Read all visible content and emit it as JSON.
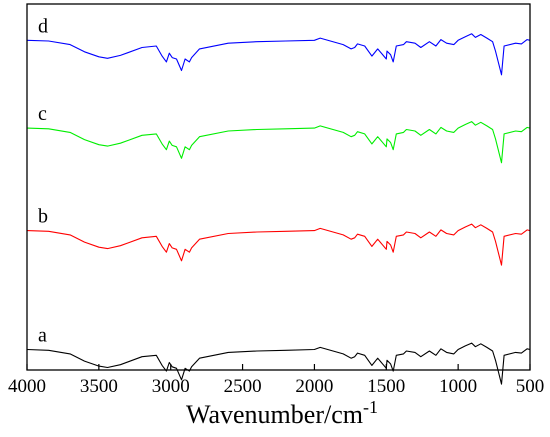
{
  "chart_data": {
    "type": "line",
    "title": "",
    "xlabel": "Wavenumber/cm",
    "xlabel_superscript": "-1",
    "ylabel": "",
    "xlim": [
      4000,
      500
    ],
    "x_reversed": true,
    "y_ticks_shown": false,
    "grid": false,
    "legend": "none",
    "x_ticks": [
      4000,
      3500,
      3000,
      2500,
      2000,
      1500,
      1000,
      500
    ],
    "series": [
      {
        "name": "a",
        "color": "#000000",
        "offset": 0.05,
        "x": [
          4000,
          3850,
          3700,
          3600,
          3500,
          3440,
          3350,
          3200,
          3100,
          3060,
          3030,
          3010,
          2990,
          2960,
          2925,
          2900,
          2870,
          2855,
          2800,
          2600,
          2400,
          2200,
          2000,
          1960,
          1800,
          1745,
          1720,
          1700,
          1650,
          1600,
          1560,
          1500,
          1495,
          1470,
          1452,
          1430,
          1380,
          1360,
          1300,
          1260,
          1200,
          1155,
          1120,
          1080,
          1030,
          1000,
          950,
          906,
          880,
          842,
          800,
          760,
          740,
          698,
          680,
          600,
          560,
          520,
          500
        ],
        "y": [
          0.68,
          0.67,
          0.62,
          0.52,
          0.45,
          0.43,
          0.47,
          0.58,
          0.6,
          0.46,
          0.38,
          0.5,
          0.44,
          0.42,
          0.26,
          0.42,
          0.38,
          0.44,
          0.56,
          0.64,
          0.66,
          0.67,
          0.68,
          0.71,
          0.62,
          0.56,
          0.58,
          0.63,
          0.6,
          0.46,
          0.56,
          0.42,
          0.53,
          0.48,
          0.38,
          0.6,
          0.62,
          0.66,
          0.64,
          0.58,
          0.66,
          0.6,
          0.69,
          0.64,
          0.62,
          0.68,
          0.73,
          0.77,
          0.72,
          0.76,
          0.71,
          0.66,
          0.53,
          0.2,
          0.6,
          0.64,
          0.63,
          0.69,
          0.68
        ]
      },
      {
        "name": "b",
        "color": "#ff0000",
        "offset": 0.375,
        "x": [
          4000,
          3850,
          3700,
          3600,
          3500,
          3440,
          3350,
          3200,
          3100,
          3060,
          3030,
          3010,
          2990,
          2960,
          2925,
          2900,
          2870,
          2855,
          2800,
          2600,
          2400,
          2200,
          2000,
          1960,
          1800,
          1745,
          1720,
          1700,
          1650,
          1600,
          1560,
          1500,
          1495,
          1470,
          1452,
          1430,
          1380,
          1360,
          1300,
          1260,
          1200,
          1155,
          1120,
          1080,
          1030,
          1000,
          950,
          906,
          880,
          842,
          800,
          760,
          740,
          698,
          680,
          600,
          560,
          520,
          500
        ],
        "y": [
          0.68,
          0.67,
          0.62,
          0.52,
          0.45,
          0.43,
          0.47,
          0.58,
          0.6,
          0.46,
          0.38,
          0.5,
          0.44,
          0.42,
          0.26,
          0.42,
          0.38,
          0.44,
          0.56,
          0.64,
          0.66,
          0.67,
          0.68,
          0.71,
          0.62,
          0.56,
          0.58,
          0.63,
          0.6,
          0.46,
          0.56,
          0.42,
          0.53,
          0.48,
          0.38,
          0.6,
          0.62,
          0.66,
          0.64,
          0.58,
          0.66,
          0.6,
          0.69,
          0.64,
          0.62,
          0.68,
          0.73,
          0.77,
          0.72,
          0.76,
          0.71,
          0.66,
          0.53,
          0.2,
          0.6,
          0.64,
          0.63,
          0.69,
          0.68
        ]
      },
      {
        "name": "c",
        "color": "#00ee00",
        "offset": 0.655,
        "x": [
          4000,
          3850,
          3700,
          3600,
          3500,
          3440,
          3350,
          3200,
          3100,
          3060,
          3030,
          3010,
          2990,
          2960,
          2925,
          2900,
          2870,
          2855,
          2800,
          2600,
          2400,
          2200,
          2000,
          1960,
          1800,
          1745,
          1720,
          1700,
          1650,
          1600,
          1560,
          1500,
          1495,
          1470,
          1452,
          1430,
          1380,
          1360,
          1300,
          1260,
          1200,
          1155,
          1120,
          1080,
          1030,
          1000,
          950,
          906,
          880,
          842,
          800,
          760,
          740,
          698,
          680,
          600,
          560,
          520,
          500
        ],
        "y": [
          0.68,
          0.67,
          0.62,
          0.52,
          0.45,
          0.43,
          0.47,
          0.58,
          0.6,
          0.46,
          0.38,
          0.5,
          0.44,
          0.42,
          0.26,
          0.42,
          0.38,
          0.44,
          0.56,
          0.64,
          0.66,
          0.67,
          0.68,
          0.71,
          0.62,
          0.56,
          0.58,
          0.63,
          0.6,
          0.46,
          0.56,
          0.42,
          0.53,
          0.48,
          0.38,
          0.6,
          0.62,
          0.66,
          0.64,
          0.58,
          0.66,
          0.6,
          0.69,
          0.64,
          0.62,
          0.68,
          0.73,
          0.77,
          0.72,
          0.76,
          0.71,
          0.66,
          0.53,
          0.2,
          0.6,
          0.64,
          0.63,
          0.69,
          0.68
        ]
      },
      {
        "name": "d",
        "color": "#0000ff",
        "offset": 0.895,
        "x": [
          4000,
          3850,
          3700,
          3600,
          3500,
          3440,
          3350,
          3200,
          3100,
          3060,
          3030,
          3010,
          2990,
          2960,
          2925,
          2900,
          2870,
          2855,
          2800,
          2600,
          2400,
          2200,
          2000,
          1960,
          1800,
          1745,
          1720,
          1700,
          1650,
          1600,
          1560,
          1500,
          1495,
          1470,
          1452,
          1430,
          1380,
          1360,
          1300,
          1260,
          1200,
          1155,
          1120,
          1080,
          1030,
          1000,
          950,
          906,
          880,
          842,
          800,
          760,
          740,
          698,
          680,
          600,
          560,
          520,
          500
        ],
        "y": [
          0.68,
          0.67,
          0.62,
          0.52,
          0.45,
          0.43,
          0.47,
          0.58,
          0.6,
          0.46,
          0.38,
          0.5,
          0.44,
          0.42,
          0.26,
          0.42,
          0.38,
          0.44,
          0.56,
          0.64,
          0.66,
          0.67,
          0.68,
          0.71,
          0.62,
          0.56,
          0.58,
          0.63,
          0.6,
          0.46,
          0.56,
          0.42,
          0.53,
          0.48,
          0.38,
          0.6,
          0.62,
          0.66,
          0.64,
          0.58,
          0.66,
          0.6,
          0.69,
          0.64,
          0.62,
          0.68,
          0.73,
          0.77,
          0.72,
          0.76,
          0.71,
          0.66,
          0.53,
          0.2,
          0.6,
          0.64,
          0.63,
          0.69,
          0.68
        ]
      }
    ]
  }
}
